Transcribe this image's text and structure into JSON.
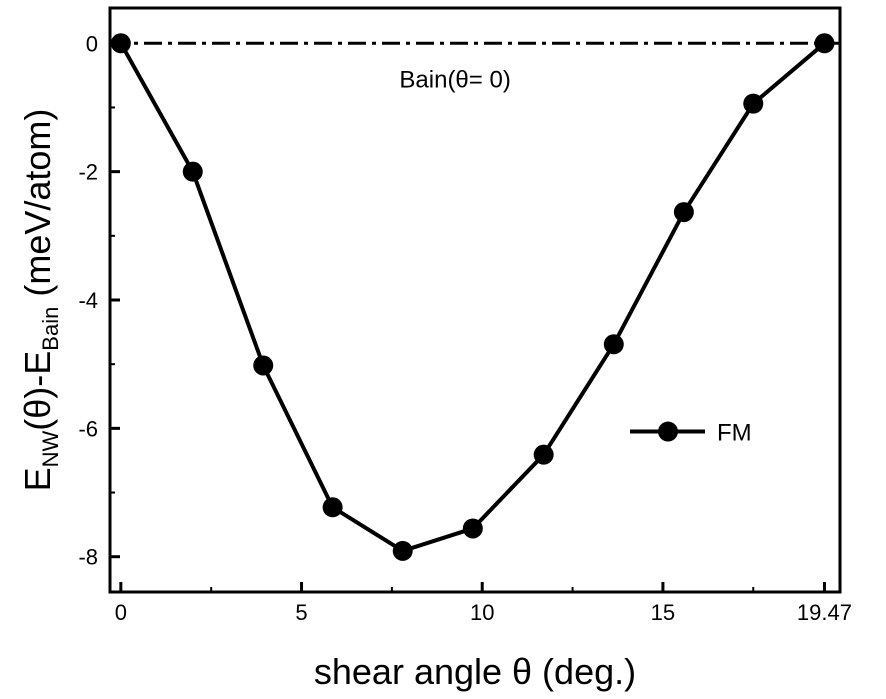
{
  "chart_data": {
    "type": "line",
    "xlabel": "shear angle θ (deg.)",
    "ylabel": "E_NW(θ)-E_Bain (meV/atom)",
    "xlim": [
      -0.3,
      19.9
    ],
    "ylim": [
      -8.55,
      0.55
    ],
    "x_ticks": [
      {
        "value": 0,
        "label": "0"
      },
      {
        "value": 5,
        "label": "5"
      },
      {
        "value": 10,
        "label": "10"
      },
      {
        "value": 15,
        "label": "15"
      },
      {
        "value": 19.47,
        "label": "19.47"
      }
    ],
    "y_ticks": [
      {
        "value": 0,
        "label": "0"
      },
      {
        "value": -2,
        "label": "-2"
      },
      {
        "value": -4,
        "label": "-4"
      },
      {
        "value": -6,
        "label": "-6"
      },
      {
        "value": -8,
        "label": "-8"
      }
    ],
    "grid": false,
    "series": [
      {
        "name": "FM",
        "color": "#000000",
        "marker": "circle",
        "x": [
          0,
          1.99,
          3.94,
          5.86,
          7.8,
          9.74,
          11.7,
          13.64,
          15.58,
          17.5,
          19.47
        ],
        "y": [
          0,
          -2.0,
          -5.02,
          -7.23,
          -7.91,
          -7.56,
          -6.41,
          -4.69,
          -2.63,
          -0.94,
          0
        ]
      }
    ],
    "reference_line": {
      "y": 0,
      "style": "dash-dot",
      "label": "Bain(θ= 0)"
    },
    "legend": {
      "position": "right-middle"
    }
  }
}
